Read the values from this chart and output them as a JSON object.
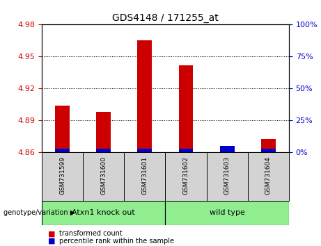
{
  "title": "GDS4148 / 171255_at",
  "samples": [
    "GSM731599",
    "GSM731600",
    "GSM731601",
    "GSM731602",
    "GSM731603",
    "GSM731604"
  ],
  "transformed_counts": [
    4.904,
    4.898,
    4.965,
    4.942,
    4.862,
    4.873
  ],
  "percentile_values": [
    3,
    3,
    3,
    3,
    5,
    3
  ],
  "ylim_left": [
    4.86,
    4.98
  ],
  "yticks_left": [
    4.86,
    4.89,
    4.92,
    4.95,
    4.98
  ],
  "ylim_right": [
    0,
    100
  ],
  "yticks_right": [
    0,
    25,
    50,
    75,
    100
  ],
  "bar_color_red": "#CC0000",
  "bar_color_blue": "#0000CC",
  "background_plot": "#FFFFFF",
  "grid_color": "black",
  "left_tick_color": "#CC0000",
  "right_tick_color": "#0000CC",
  "legend_red_label": "transformed count",
  "legend_blue_label": "percentile rank within the sample",
  "genotype_label": "genotype/variation",
  "group_ko_label": "Atxn1 knock out",
  "group_wt_label": "wild type",
  "group_color": "#90EE90",
  "sample_cell_color": "#D3D3D3"
}
